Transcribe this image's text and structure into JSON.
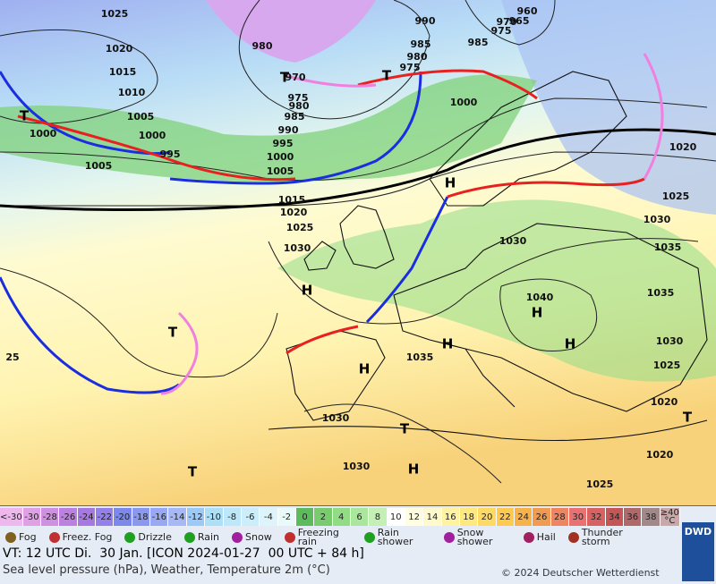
{
  "map": {
    "isobar_labels": [
      "1025",
      "1020",
      "1015",
      "1010",
      "1005",
      "1000",
      "1000",
      "1005",
      "995",
      "980",
      "990",
      "985",
      "980",
      "975",
      "970",
      "975",
      "980",
      "985",
      "990",
      "995",
      "1000",
      "1005",
      "1015",
      "1020",
      "1025",
      "1030",
      "1000",
      "960",
      "965",
      "970",
      "975",
      "985",
      "1030",
      "1030",
      "1035",
      "1040",
      "1035",
      "1030",
      "1025",
      "1020",
      "1020",
      "1025",
      "1035",
      "1030",
      "1030",
      "1020",
      "1025",
      "25"
    ],
    "pressure_centers": [
      "H",
      "H",
      "H",
      "H",
      "H",
      "H",
      "H",
      "T",
      "T",
      "T",
      "T",
      "T",
      "T",
      "T"
    ]
  },
  "color_scale": {
    "labels": [
      "<-30",
      "-30",
      "-28",
      "-26",
      "-24",
      "-22",
      "-20",
      "-18",
      "-16",
      "-14",
      "-12",
      "-10",
      "-8",
      "-6",
      "-4",
      "-2",
      "0",
      "2",
      "4",
      "6",
      "8",
      "10",
      "12",
      "14",
      "16",
      "18",
      "20",
      "22",
      "24",
      "26",
      "28",
      "30",
      "32",
      "34",
      "36",
      "38",
      "≥40 °C"
    ],
    "colors": [
      "#eeb8ee",
      "#dfa0e6",
      "#cf90e2",
      "#bd80e0",
      "#a878e2",
      "#9480e8",
      "#7c88ea",
      "#8a98f0",
      "#98a8f2",
      "#a6b8f6",
      "#9ccaf8",
      "#ace0f8",
      "#bce8fa",
      "#cceefa",
      "#dcf4fa",
      "#e8fafa",
      "#5cbc5c",
      "#78cc6e",
      "#92dc86",
      "#aae69e",
      "#c4f0b6",
      "#ffffff",
      "#ffffe0",
      "#fffacc",
      "#fff2a0",
      "#ffe880",
      "#ffda62",
      "#ffca52",
      "#f8b24a",
      "#f09a52",
      "#ee8462",
      "#e87272",
      "#d86262",
      "#c65656",
      "#b06868",
      "#a28888",
      "#c8a8a8"
    ]
  },
  "weather_legend": [
    "Fog",
    "Freez. Fog",
    "Drizzle",
    "Rain",
    "Snow",
    "Freezing rain",
    "Rain shower",
    "Snow shower",
    "Hail",
    "Thunder storm"
  ],
  "footer": {
    "valid_time": "VT: 12 UTC Di.  30 Jan. [ICON 2024-01-27  00 UTC + 84 h]",
    "subtitle": "Sea level pressure (hPa), Weather, Temperature 2m (°C)",
    "copyright": "© 2024 Deutscher Wetterdienst",
    "logo": "DWD"
  }
}
